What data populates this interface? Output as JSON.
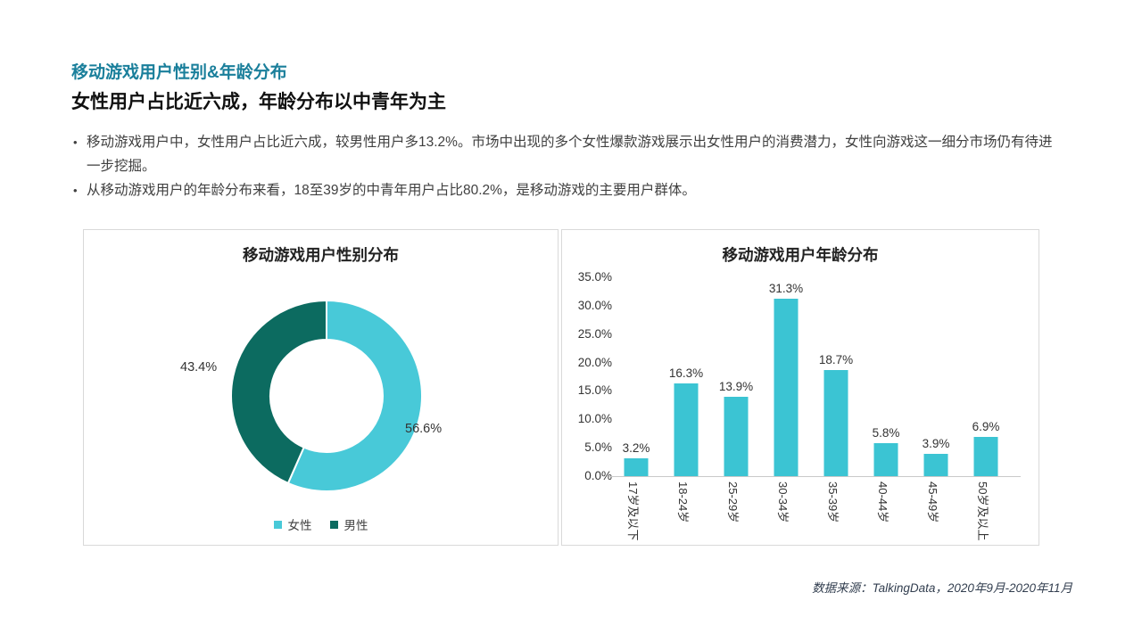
{
  "header": {
    "section_title": "移动游戏用户性别&年龄分布",
    "headline": "女性用户占比近六成，年龄分布以中青年为主",
    "bullets": [
      "移动游戏用户中，女性用户占比近六成，较男性用户多13.2%。市场中出现的多个女性爆款游戏展示出女性用户的消费潜力，女性向游戏这一细分市场仍有待进一步挖掘。",
      "从移动游戏用户的年龄分布来看，18至39岁的中青年用户占比80.2%，是移动游戏的主要用户群体。"
    ]
  },
  "colors": {
    "accent": "#1A7F9B",
    "female": "#48C9D8",
    "male": "#0C6B60",
    "bar": "#3BC4D3",
    "panel_border": "#D9D9D9",
    "axis_line": "#C9C9C9",
    "body_text": "#404040"
  },
  "chart_data": [
    {
      "type": "pie",
      "donut": true,
      "title": "移动游戏用户性别分布",
      "start": "top",
      "direction": "clockwise",
      "legend_position": "bottom",
      "slices": [
        {
          "name": "女性",
          "value": 56.6,
          "label": "56.6%",
          "color": "#48C9D8"
        },
        {
          "name": "男性",
          "value": 43.4,
          "label": "43.4%",
          "color": "#0C6B60"
        }
      ]
    },
    {
      "type": "bar",
      "title": "移动游戏用户年龄分布",
      "categories": [
        "17岁及以下",
        "18-24岁",
        "25-29岁",
        "30-34岁",
        "35-39岁",
        "40-44岁",
        "45-49岁",
        "50岁及以上"
      ],
      "values": [
        3.2,
        16.3,
        13.9,
        31.3,
        18.7,
        5.8,
        3.9,
        6.9
      ],
      "labels": [
        "3.2%",
        "16.3%",
        "13.9%",
        "31.3%",
        "18.7%",
        "5.8%",
        "3.9%",
        "6.9%"
      ],
      "yticks": [
        "0.0%",
        "5.0%",
        "10.0%",
        "15.0%",
        "20.0%",
        "25.0%",
        "30.0%",
        "35.0%"
      ],
      "ylim": [
        0,
        35
      ],
      "xlabel": "",
      "ylabel": "",
      "grid": false,
      "bar_color": "#3BC4D3"
    }
  ],
  "footer": {
    "source": "数据来源：TalkingData，2020年9月-2020年11月"
  }
}
